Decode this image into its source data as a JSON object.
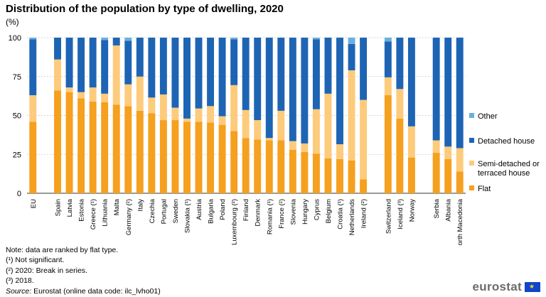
{
  "title": "Distribution of the population by type of dwelling, 2020",
  "unit": "(%)",
  "notes": [
    "Note: data are ranked by flat type.",
    "(¹) Not significant.",
    "(²) 2020: Break in series.",
    "(³) 2018."
  ],
  "source_label": "Source:",
  "source_text": " Eurostat (online data code: ilc_lvho01)",
  "brand": "eurostat",
  "colors": {
    "other": "#6aafe1",
    "detached": "#1e64b4",
    "semi": "#fdcb7c",
    "flat": "#f5a01e",
    "grid": "#c8c8c8"
  },
  "legend": [
    {
      "key": "other",
      "label": "Other"
    },
    {
      "key": "detached",
      "label": "Detached house"
    },
    {
      "key": "semi",
      "label": "Semi-detached or terraced house"
    },
    {
      "key": "flat",
      "label": "Flat"
    }
  ],
  "chart_data": {
    "type": "bar",
    "stacked": true,
    "title": "Distribution of the population by type of dwelling, 2020",
    "ylabel": "(%)",
    "ylim": [
      0,
      100
    ],
    "yticks": [
      0,
      25,
      50,
      75,
      100
    ],
    "grid": true,
    "legend_position": "right",
    "groups": [
      [
        "EU"
      ],
      [
        "Spain",
        "Latvia",
        "Estonia",
        "Greece (¹)",
        "Lithuania",
        "Malta",
        "Germany (²)",
        "Italy",
        "Czechia",
        "Portugal",
        "Sweden",
        "Slovakia (¹)",
        "Austria",
        "Bulgaria",
        "Poland",
        "Luxembourg (²)",
        "Finland",
        "Denmark",
        "Romania (¹)",
        "France (²)",
        "Slovenia",
        "Hungary",
        "Cyprus",
        "Belgium",
        "Croatia (¹)",
        "Netherlands",
        "Ireland (²)"
      ],
      [
        "Switzerland",
        "Iceland (³)",
        "Norway"
      ],
      [
        "Serbia",
        "Albania",
        "North Macedonia"
      ]
    ],
    "categories": [
      "EU",
      "Spain",
      "Latvia",
      "Estonia",
      "Greece (¹)",
      "Lithuania",
      "Malta",
      "Germany (²)",
      "Italy",
      "Czechia",
      "Portugal",
      "Sweden",
      "Slovakia (¹)",
      "Austria",
      "Bulgaria",
      "Poland",
      "Luxembourg (²)",
      "Finland",
      "Denmark",
      "Romania (¹)",
      "France (²)",
      "Slovenia",
      "Hungary",
      "Cyprus",
      "Belgium",
      "Croatia (¹)",
      "Netherlands",
      "Ireland (²)",
      "Switzerland",
      "Iceland (³)",
      "Norway",
      "Serbia",
      "Albania",
      "North Macedonia"
    ],
    "series": [
      {
        "name": "Flat",
        "key": "flat",
        "values": [
          46,
          66,
          65,
          61,
          59,
          58.5,
          57,
          56,
          53,
          51.5,
          47,
          47,
          46,
          46,
          45.5,
          44,
          40,
          35.5,
          34.5,
          34,
          34,
          28,
          26.5,
          25.5,
          22.5,
          22,
          21,
          9,
          63,
          48,
          23,
          26,
          22,
          14
        ]
      },
      {
        "name": "Semi-detached or terraced house",
        "key": "semi",
        "values": [
          17,
          20,
          3,
          4,
          9,
          5.5,
          38,
          14,
          22,
          10,
          16.5,
          8,
          2,
          8.5,
          10.5,
          5.5,
          29.5,
          18,
          12.5,
          1.5,
          19,
          5.5,
          5.5,
          28.5,
          41.5,
          9.5,
          58,
          51,
          11.5,
          19,
          20,
          8,
          8,
          15
        ]
      },
      {
        "name": "Detached house",
        "key": "detached",
        "values": [
          36,
          14,
          32,
          35,
          32,
          34.5,
          5,
          28,
          25,
          38.5,
          36.5,
          45,
          52,
          45.5,
          44,
          50.5,
          29.5,
          46.5,
          53,
          64.5,
          47,
          66.5,
          68,
          45,
          36,
          68.5,
          17,
          40,
          23,
          33,
          57,
          66,
          70,
          71
        ]
      },
      {
        "name": "Other",
        "key": "other",
        "values": [
          1,
          0,
          0,
          0,
          0,
          1.5,
          0,
          2,
          0,
          0,
          0,
          0,
          0,
          0,
          0,
          0,
          1,
          0,
          0,
          0,
          0,
          0,
          0,
          1,
          0,
          0,
          4,
          0,
          2.5,
          0,
          0,
          0,
          0,
          0
        ]
      }
    ]
  }
}
